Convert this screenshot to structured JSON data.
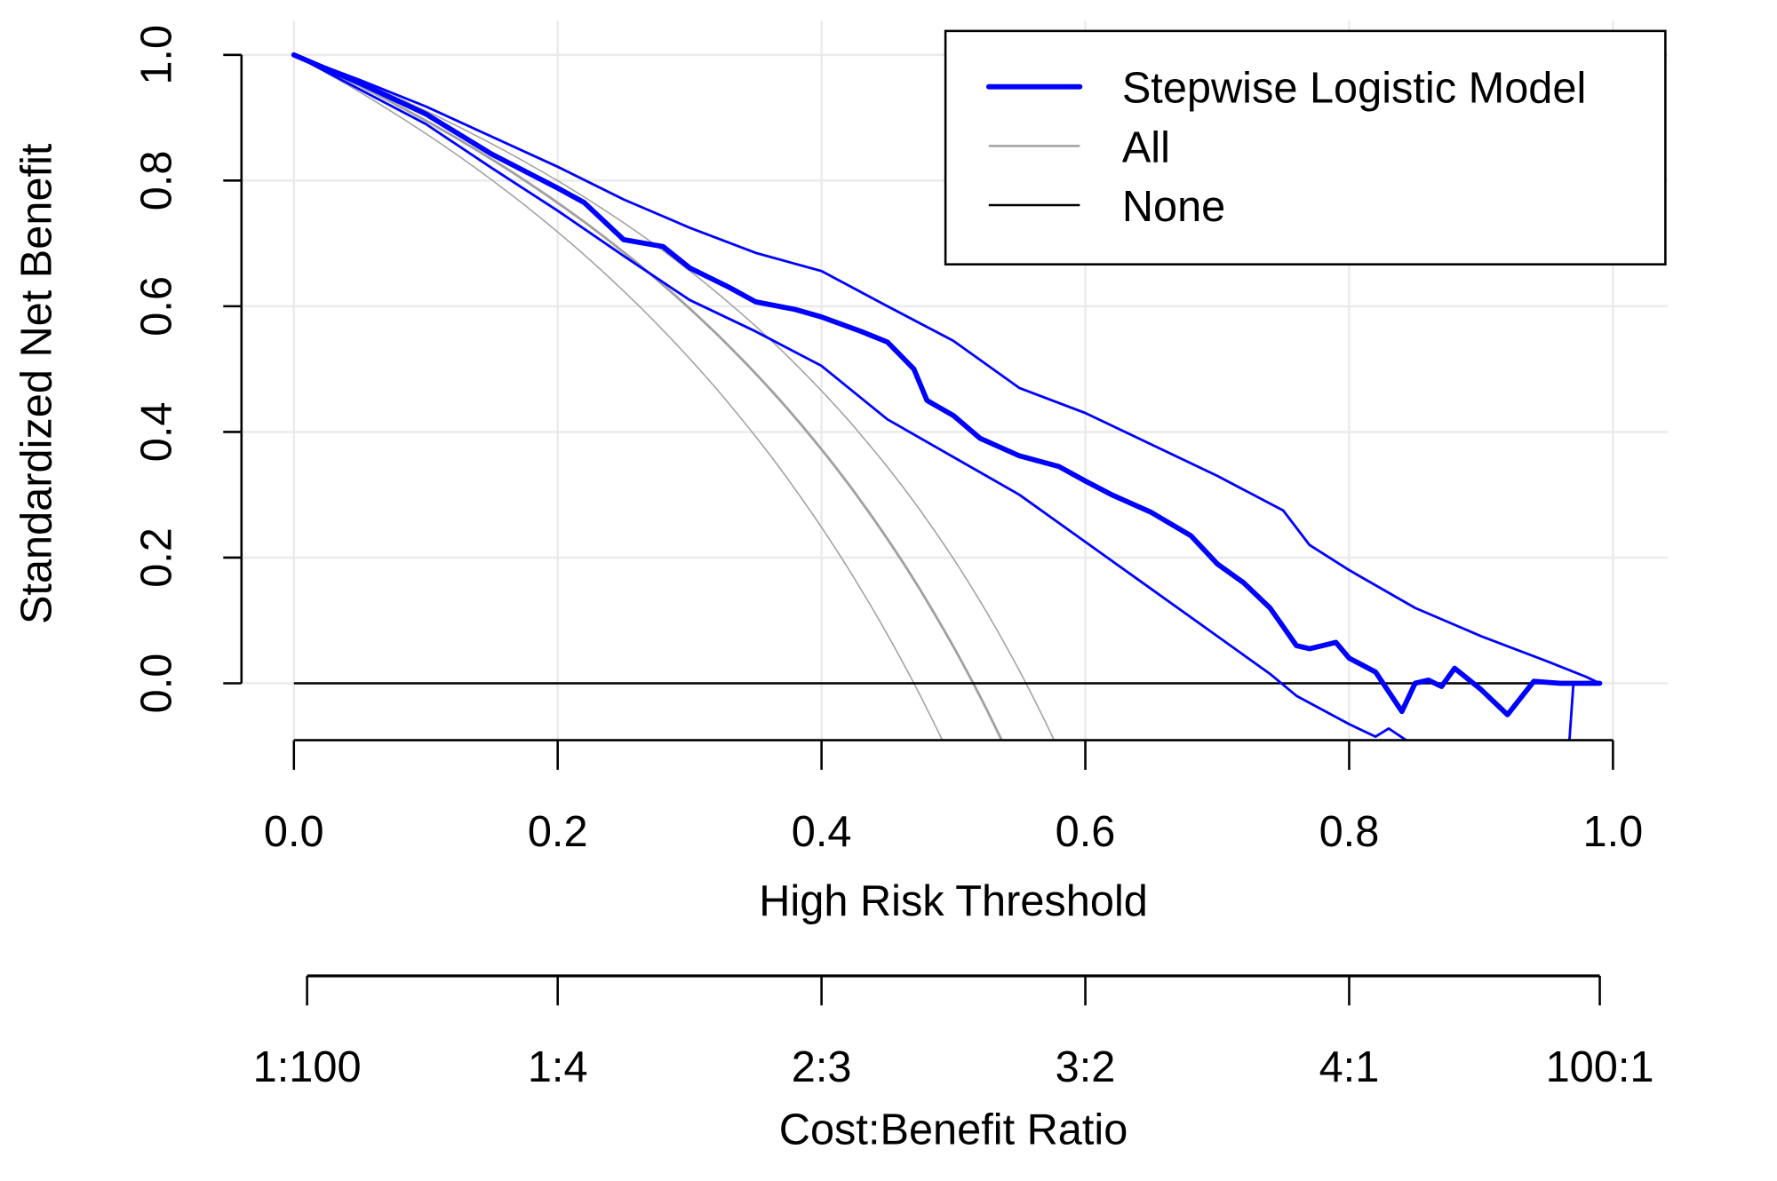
{
  "chart_data": {
    "type": "line",
    "xlabel": "High Risk Threshold",
    "ylabel": "Standardized Net Benefit",
    "xlim": [
      0,
      1
    ],
    "ylim": [
      -0.05,
      1
    ],
    "grid": true,
    "legend_position": "top-right",
    "x_ticks": [
      "0.0",
      "0.2",
      "0.4",
      "0.6",
      "0.8",
      "1.0"
    ],
    "y_ticks": [
      "0.0",
      "0.2",
      "0.4",
      "0.6",
      "0.8",
      "1.0"
    ],
    "secondary_axis": {
      "label": "Cost:Benefit Ratio",
      "ticks": [
        {
          "t": 0.01,
          "label": "1:100"
        },
        {
          "t": 0.2,
          "label": "1:4"
        },
        {
          "t": 0.4,
          "label": "2:3"
        },
        {
          "t": 0.6,
          "label": "3:2"
        },
        {
          "t": 0.8,
          "label": "4:1"
        },
        {
          "t": 0.99,
          "label": "100:1"
        }
      ]
    },
    "colors": {
      "model": "#0000ff",
      "all": "#a0a0a0",
      "none": "#000000",
      "grid": "#ebebeb"
    },
    "legend": [
      {
        "name": "Stepwise Logistic Model",
        "color": "#0000ff",
        "width": "thick"
      },
      {
        "name": "All",
        "color": "#a0a0a0",
        "width": "thin"
      },
      {
        "name": "None",
        "color": "#000000",
        "width": "thin"
      }
    ],
    "series": [
      {
        "name": "Stepwise Logistic Model",
        "role": "estimate",
        "points": [
          [
            0,
            1
          ],
          [
            0.05,
            0.955
          ],
          [
            0.1,
            0.906
          ],
          [
            0.15,
            0.842
          ],
          [
            0.2,
            0.788
          ],
          [
            0.22,
            0.765
          ],
          [
            0.25,
            0.706
          ],
          [
            0.28,
            0.695
          ],
          [
            0.3,
            0.661
          ],
          [
            0.33,
            0.63
          ],
          [
            0.35,
            0.607
          ],
          [
            0.38,
            0.595
          ],
          [
            0.4,
            0.583
          ],
          [
            0.43,
            0.56
          ],
          [
            0.45,
            0.543
          ],
          [
            0.47,
            0.5
          ],
          [
            0.48,
            0.45
          ],
          [
            0.5,
            0.426
          ],
          [
            0.52,
            0.39
          ],
          [
            0.55,
            0.362
          ],
          [
            0.58,
            0.345
          ],
          [
            0.6,
            0.322
          ],
          [
            0.62,
            0.3
          ],
          [
            0.65,
            0.272
          ],
          [
            0.68,
            0.235
          ],
          [
            0.7,
            0.19
          ],
          [
            0.72,
            0.16
          ],
          [
            0.74,
            0.12
          ],
          [
            0.75,
            0.09
          ],
          [
            0.76,
            0.06
          ],
          [
            0.77,
            0.055
          ],
          [
            0.79,
            0.065
          ],
          [
            0.8,
            0.04
          ],
          [
            0.82,
            0.018
          ],
          [
            0.84,
            -0.045
          ],
          [
            0.85,
            0
          ],
          [
            0.86,
            0.005
          ],
          [
            0.87,
            -0.005
          ],
          [
            0.88,
            0.024
          ],
          [
            0.9,
            -0.01
          ],
          [
            0.92,
            -0.05
          ],
          [
            0.94,
            0.003
          ],
          [
            0.96,
            0
          ],
          [
            0.99,
            0
          ]
        ]
      },
      {
        "name": "Stepwise Logistic Model upper",
        "role": "ci",
        "points": [
          [
            0,
            1
          ],
          [
            0.05,
            0.96
          ],
          [
            0.1,
            0.918
          ],
          [
            0.15,
            0.87
          ],
          [
            0.2,
            0.822
          ],
          [
            0.25,
            0.77
          ],
          [
            0.3,
            0.725
          ],
          [
            0.35,
            0.685
          ],
          [
            0.4,
            0.656
          ],
          [
            0.45,
            0.6
          ],
          [
            0.5,
            0.545
          ],
          [
            0.55,
            0.47
          ],
          [
            0.6,
            0.43
          ],
          [
            0.65,
            0.38
          ],
          [
            0.7,
            0.33
          ],
          [
            0.75,
            0.275
          ],
          [
            0.77,
            0.22
          ],
          [
            0.8,
            0.18
          ],
          [
            0.85,
            0.12
          ],
          [
            0.9,
            0.075
          ],
          [
            0.95,
            0.035
          ],
          [
            0.98,
            0.01
          ],
          [
            0.99,
            0
          ]
        ]
      },
      {
        "name": "Stepwise Logistic Model lower",
        "role": "ci",
        "points": [
          [
            0,
            1
          ],
          [
            0.05,
            0.945
          ],
          [
            0.1,
            0.89
          ],
          [
            0.15,
            0.82
          ],
          [
            0.2,
            0.752
          ],
          [
            0.25,
            0.68
          ],
          [
            0.3,
            0.61
          ],
          [
            0.35,
            0.56
          ],
          [
            0.4,
            0.505
          ],
          [
            0.45,
            0.42
          ],
          [
            0.5,
            0.36
          ],
          [
            0.55,
            0.3
          ],
          [
            0.6,
            0.225
          ],
          [
            0.65,
            0.15
          ],
          [
            0.7,
            0.075
          ],
          [
            0.74,
            0.015
          ],
          [
            0.76,
            -0.02
          ],
          [
            0.8,
            -0.065
          ],
          [
            0.82,
            -0.085
          ],
          [
            0.83,
            -0.072
          ],
          [
            0.85,
            -0.1
          ],
          [
            0.88,
            -0.3
          ],
          [
            0.96,
            -0.3
          ],
          [
            0.97,
            0
          ],
          [
            0.99,
            0
          ]
        ]
      },
      {
        "name": "All",
        "role": "estimate",
        "prevalence": 0.515
      },
      {
        "name": "All lower",
        "role": "ci",
        "prevalence": 0.47
      },
      {
        "name": "All upper",
        "role": "ci",
        "prevalence": 0.555
      },
      {
        "name": "None",
        "role": "estimate",
        "constant": 0
      }
    ]
  }
}
